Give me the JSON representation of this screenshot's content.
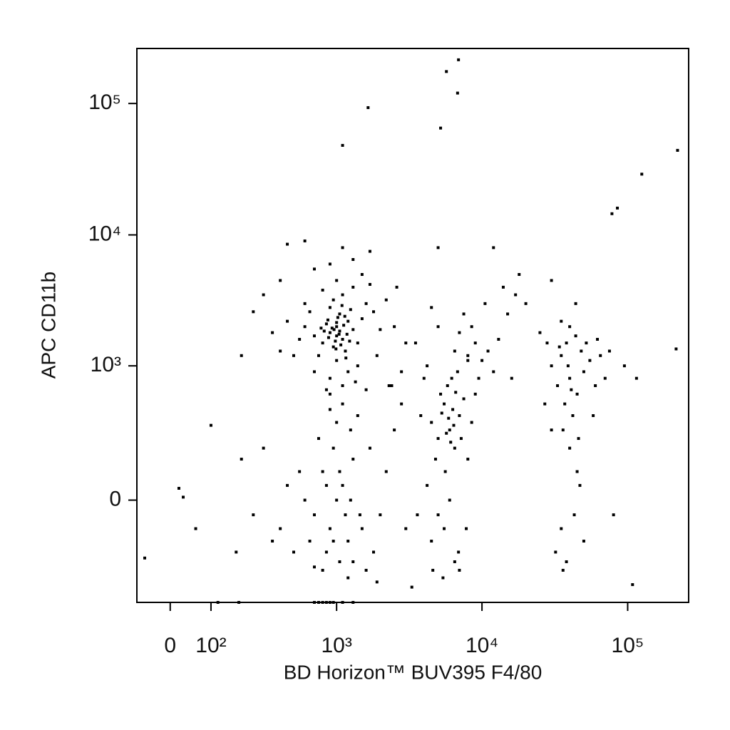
{
  "chart_data": {
    "type": "scatter",
    "xlabel": "BD Horizon™ BUV395 F4/80",
    "ylabel": "APC CD11b",
    "xscale": "biexponential",
    "yscale": "biexponential",
    "xlim": [
      -80,
      262144
    ],
    "ylim": [
      -560,
      262144
    ],
    "xticks": [
      0,
      {
        "value": 100,
        "label": "10²"
      },
      {
        "value": 1000,
        "label": "10³"
      },
      {
        "value": 10000,
        "label": "10⁴"
      },
      {
        "value": 100000,
        "label": "10⁵"
      }
    ],
    "yticks": [
      0,
      {
        "value": 1000,
        "label": "10³"
      },
      {
        "value": 10000,
        "label": "10⁴"
      },
      {
        "value": 100000,
        "label": "10⁵"
      }
    ],
    "color": "#000000",
    "x": [
      900,
      1000,
      1100,
      950,
      1200,
      800,
      1050,
      1300,
      700,
      900,
      1150,
      1000,
      850,
      1250,
      1400,
      750,
      950,
      1100,
      600,
      1500,
      1000,
      1050,
      980,
      1120,
      880,
      1020,
      930,
      1180,
      820,
      1070,
      1600,
      1800,
      2000,
      650,
      550,
      500,
      700,
      900,
      1200,
      1400,
      1300,
      1000,
      800,
      1500,
      1700,
      600,
      450,
      2200,
      2500,
      1900,
      1100,
      850,
      1350,
      700,
      450,
      600,
      1100,
      1700,
      1300,
      900,
      400,
      300,
      250,
      350,
      400,
      200,
      2600,
      3000,
      2800,
      2300,
      1000,
      960,
      1040,
      1140,
      870,
      780,
      1230,
      1090,
      990,
      1160,
      1000,
      900,
      1100,
      800,
      1200,
      700,
      1300,
      600,
      1500,
      950,
      850,
      1050,
      750,
      1250,
      650,
      550,
      450,
      400,
      1700,
      2000,
      1800,
      2200,
      2500,
      3000,
      1400,
      1100,
      900,
      1000,
      800,
      1200,
      1600,
      1900,
      1300,
      700,
      500,
      350,
      300,
      250,
      200,
      180,
      2800,
      2400,
      1600,
      900,
      1150,
      1050,
      950,
      850,
      1250,
      1450,
      6000,
      5500,
      6500,
      5000,
      7000,
      5800,
      6200,
      4500,
      4800,
      5200,
      6800,
      7500,
      5600,
      6000,
      5000,
      4500,
      5500,
      6500,
      4200,
      7200,
      8000,
      8500,
      7800,
      6300,
      5900,
      6100,
      5300,
      6600,
      5700,
      6400,
      4000,
      3800,
      4200,
      8000,
      9000,
      4600,
      3600,
      7000,
      5400,
      6900,
      8000,
      9000,
      10000,
      7000,
      11000,
      8500,
      12000,
      6500,
      9500,
      13000,
      15000,
      17000,
      20000,
      14000,
      7500,
      10500,
      5000,
      4500,
      3500,
      16000,
      40000,
      35000,
      45000,
      38000,
      50000,
      42000,
      33000,
      48000,
      36000,
      55000,
      40000,
      30000,
      44000,
      60000,
      37000,
      46000,
      34000,
      52000,
      39000,
      41000,
      35000,
      38000,
      43000,
      47000,
      32000,
      36000,
      50000,
      45000,
      28000,
      65000,
      70000,
      75000,
      27000,
      30000,
      58000,
      62000,
      40000,
      44000,
      25000,
      35000,
      1100,
      1650,
      5200,
      5700,
      6800,
      6900,
      220000,
      125000,
      85000,
      78000,
      215000,
      108000,
      -60,
      100,
      20,
      30,
      60,
      115000,
      95000,
      80000,
      12000,
      5000,
      30000,
      18000,
      3300,
      700,
      750,
      800,
      850,
      900,
      950,
      1100,
      1300,
      120,
      190
    ],
    "values": [
      1800,
      2000,
      1600,
      1400,
      2200,
      1500,
      2500,
      1900,
      1700,
      2800,
      1300,
      1100,
      2100,
      2700,
      1500,
      1200,
      3200,
      3500,
      2000,
      2300,
      1700,
      1850,
      1550,
      2050,
      1650,
      2350,
      1950,
      1750,
      1850,
      1450,
      3000,
      2600,
      1900,
      2600,
      1600,
      1200,
      900,
      800,
      900,
      1000,
      4000,
      4500,
      3800,
      5000,
      4200,
      3000,
      2200,
      3200,
      2000,
      1200,
      700,
      650,
      750,
      5500,
      8500,
      9000,
      8000,
      7500,
      6500,
      6000,
      4500,
      3500,
      2600,
      1800,
      1300,
      1200,
      4000,
      1500,
      900,
      700,
      2150,
      1900,
      1750,
      2400,
      2250,
      1950,
      1550,
      2900,
      1350,
      1150,
      0,
      -100,
      50,
      100,
      -150,
      -50,
      150,
      0,
      -100,
      200,
      -200,
      -250,
      250,
      300,
      -150,
      100,
      50,
      -100,
      200,
      -50,
      -200,
      100,
      300,
      -100,
      400,
      500,
      600,
      350,
      -300,
      -350,
      -300,
      -380,
      -250,
      -280,
      -200,
      -150,
      200,
      -50,
      150,
      -200,
      500,
      700,
      650,
      450,
      -50,
      100,
      -150,
      50,
      0,
      -50,
      300,
      500,
      200,
      250,
      400,
      700,
      800,
      350,
      150,
      600,
      900,
      550,
      100,
      0,
      -50,
      -150,
      -100,
      -250,
      50,
      250,
      150,
      350,
      -100,
      450,
      380,
      230,
      420,
      620,
      280,
      330,
      800,
      400,
      1000,
      1100,
      600,
      -300,
      -50,
      -300,
      -350,
      -200,
      1200,
      1500,
      1100,
      1800,
      1300,
      2000,
      900,
      1300,
      800,
      1600,
      2500,
      3500,
      3000,
      4000,
      2500,
      3000,
      2000,
      2800,
      1500,
      800,
      800,
      1200,
      600,
      1500,
      900,
      400,
      700,
      1300,
      300,
      1100,
      200,
      1000,
      1700,
      700,
      500,
      250,
      1400,
      1500,
      1000,
      650,
      -100,
      -250,
      -50,
      50,
      -200,
      -300,
      -150,
      100,
      1500,
      1200,
      800,
      1300,
      500,
      300,
      400,
      1600,
      2000,
      3000,
      1800,
      2200,
      48000,
      93000,
      65000,
      175000,
      120000,
      215000,
      44000,
      29000,
      16000,
      14500,
      1350,
      -400,
      -230,
      330,
      40,
      10,
      -100,
      800,
      1000,
      -50,
      8000,
      8000,
      4500,
      5000,
      -420,
      -560,
      -560,
      -560,
      -560,
      -560,
      -560,
      -560,
      -560,
      -560,
      -560
    ]
  }
}
